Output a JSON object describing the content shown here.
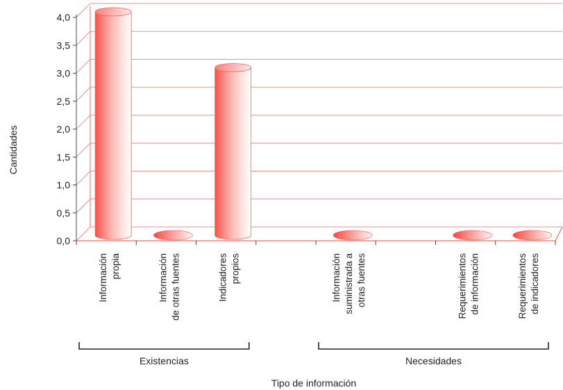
{
  "chart_data": {
    "type": "bar",
    "style": "3d-cylinder",
    "xlabel": "Tipo de información",
    "ylabel": "Cantidades",
    "ylim": [
      0,
      4.0
    ],
    "yticks": [
      "0,0",
      "0,5",
      "1,0",
      "1,5",
      "2,0",
      "2,5",
      "3,0",
      "3,5",
      "4,0"
    ],
    "grid": true,
    "bar_color": "#f46a63",
    "grid_color": "#f46a63",
    "categories": [
      {
        "lines": [
          "Información",
          "propia"
        ],
        "value": 4.0
      },
      {
        "lines": [
          "Información",
          "de otras fuentes"
        ],
        "value": 0
      },
      {
        "lines": [
          "Indicadores",
          "propios"
        ],
        "value": 3.0
      },
      {
        "lines": [],
        "value": null
      },
      {
        "lines": [
          "Información",
          "suministrada a",
          "otras fuentes"
        ],
        "value": 0
      },
      {
        "lines": [],
        "value": null
      },
      {
        "lines": [
          "Requerimientos",
          "de información"
        ],
        "value": 0
      },
      {
        "lines": [
          "Requerimientos",
          "de indicadores"
        ],
        "value": 0
      }
    ],
    "groups": [
      {
        "label": "Existencias",
        "from": 0,
        "to": 2
      },
      {
        "label": "Necesidades",
        "from": 4,
        "to": 7
      }
    ]
  }
}
